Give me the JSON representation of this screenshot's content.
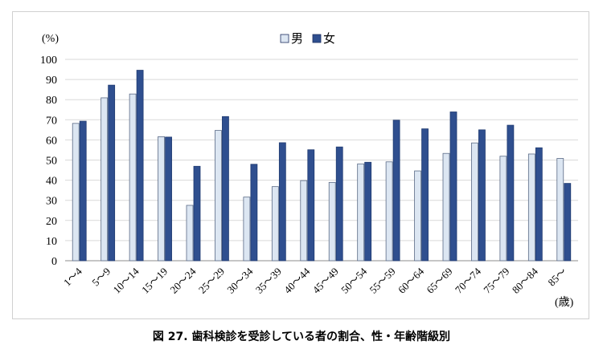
{
  "caption": "図 27. 歯科検診を受診している者の割合、性・年齢階級別",
  "chart_data": {
    "type": "bar",
    "title": "",
    "ylabel": "(%)",
    "xlabel": "(歳)",
    "ylim": [
      0,
      100
    ],
    "yticks": [
      0,
      10,
      20,
      30,
      40,
      50,
      60,
      70,
      80,
      90,
      100
    ],
    "grid": true,
    "legend_position": "top",
    "categories": [
      "1～4",
      "5～9",
      "10～14",
      "15～19",
      "20～24",
      "25～29",
      "30～34",
      "35～39",
      "40～44",
      "45～49",
      "50～54",
      "55～59",
      "60～64",
      "65～69",
      "70～74",
      "75～79",
      "80～84",
      "85～"
    ],
    "series": [
      {
        "name": "男",
        "color": "#dce6f2",
        "values": [
          68.2,
          80.9,
          82.8,
          61.6,
          27.5,
          64.7,
          31.6,
          36.8,
          39.8,
          38.9,
          48.1,
          49.1,
          44.6,
          53.3,
          58.5,
          51.9,
          53.0,
          50.8
        ]
      },
      {
        "name": "女",
        "color": "#2f4f8f",
        "values": [
          69.3,
          87.2,
          94.6,
          61.4,
          46.9,
          71.6,
          47.9,
          58.6,
          55.1,
          56.5,
          48.9,
          69.8,
          65.5,
          73.9,
          65.0,
          67.3,
          56.1,
          38.4
        ]
      }
    ]
  }
}
